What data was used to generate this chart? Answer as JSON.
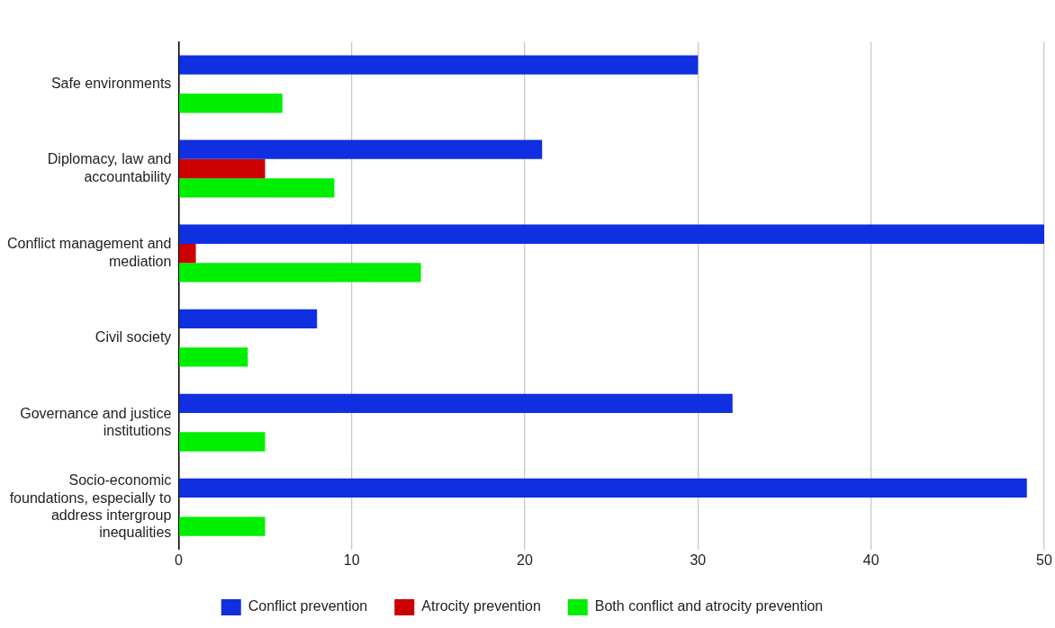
{
  "chart_data": {
    "type": "bar",
    "orientation": "horizontal",
    "categories": [
      "Safe environments",
      "Diplomacy, law and accountability",
      "Conflict management and mediation",
      "Civil society",
      "Governance and justice institutions",
      "Socio-economic foundations, especially to address intergroup inequalities"
    ],
    "series": [
      {
        "name": "Conflict prevention",
        "color": "#0f2fe0",
        "values": [
          30,
          21,
          50,
          8,
          32,
          49
        ]
      },
      {
        "name": "Atrocity prevention",
        "color": "#cc0000",
        "values": [
          null,
          5,
          1,
          null,
          null,
          null
        ]
      },
      {
        "name": "Both conflict and atrocity prevention",
        "color": "#00ee00",
        "values": [
          6,
          9,
          14,
          4,
          5,
          5
        ]
      }
    ],
    "xlim": [
      0,
      50
    ],
    "xticks": [
      0,
      10,
      20,
      30,
      40,
      50
    ],
    "grid": "x",
    "legend": "bottom"
  }
}
